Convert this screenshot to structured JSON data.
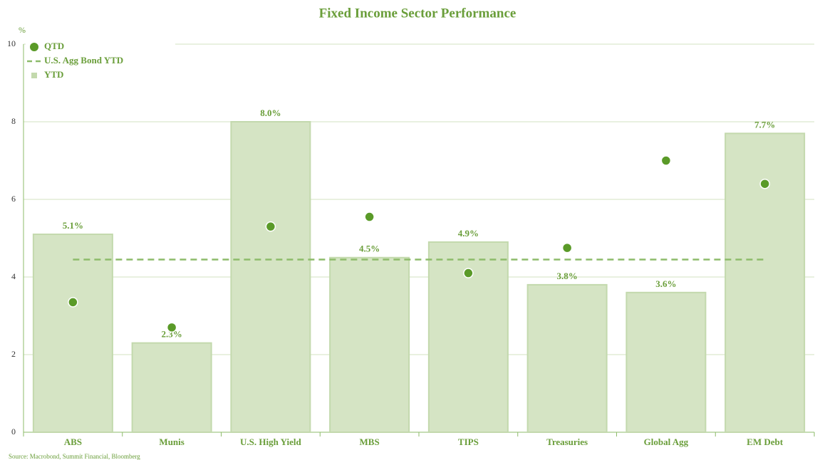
{
  "chart_data": {
    "type": "bar",
    "title": "Fixed Income Sector Performance",
    "y_label": "%",
    "source": "Source: Macrobond, Summit Financial, Bloomberg",
    "categories": [
      "ABS",
      "Munis",
      "U.S. High Yield",
      "MBS",
      "TIPS",
      "Treasuries",
      "Global Agg",
      "EM Debt"
    ],
    "series": [
      {
        "name": "YTD",
        "type": "bar",
        "color": "#d5e4c4",
        "values": [
          5.1,
          2.3,
          8.0,
          4.5,
          4.9,
          3.8,
          3.6,
          7.7
        ],
        "value_labels": [
          "5.1%",
          "2.3%",
          "8.0%",
          "4.5%",
          "4.9%",
          "3.8%",
          "3.6%",
          "7.7%"
        ]
      },
      {
        "name": "QTD",
        "type": "scatter",
        "color": "#5a9a28",
        "values": [
          3.35,
          2.7,
          5.3,
          5.55,
          4.1,
          4.75,
          7.0,
          6.4
        ]
      }
    ],
    "reference_line": {
      "name": "U.S. Agg Bond YTD",
      "value": 4.45,
      "color": "#8dbb6a"
    },
    "ylim": [
      0,
      10
    ],
    "yticks": [
      0,
      2,
      4,
      6,
      8,
      10
    ],
    "grid": true,
    "legend": "top-left"
  }
}
